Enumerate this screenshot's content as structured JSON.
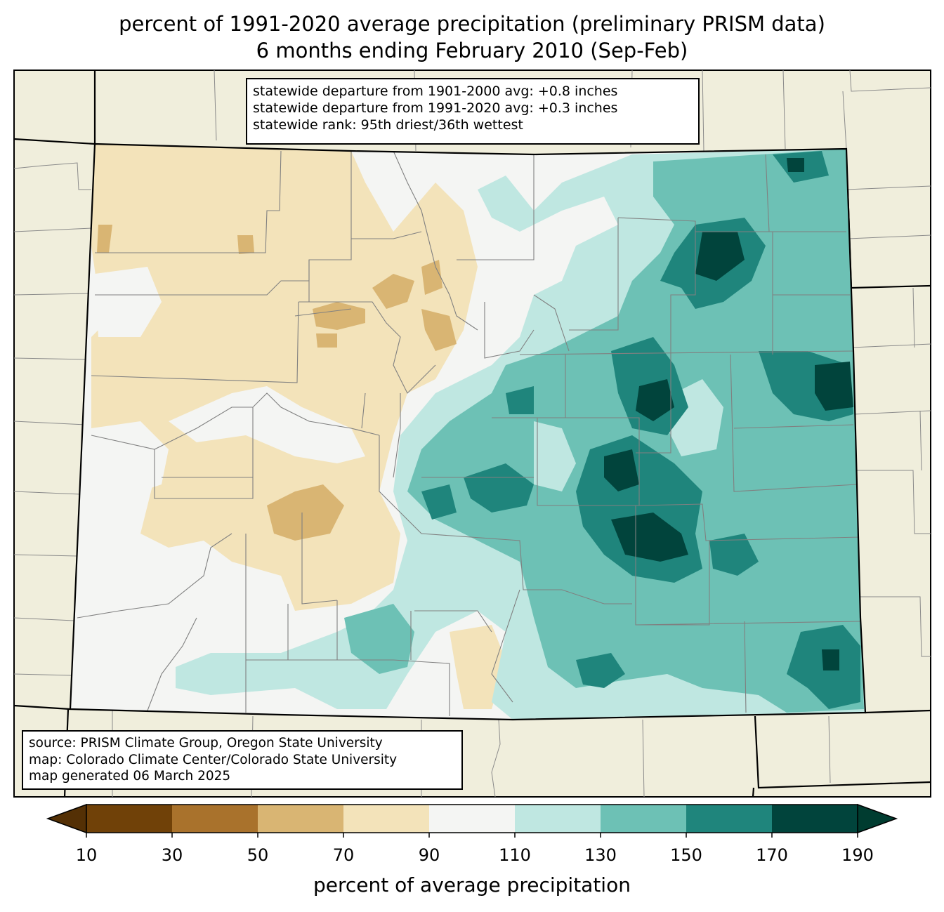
{
  "title": {
    "line1": "percent of 1991-2020 average precipitation (preliminary PRISM data)",
    "line2": "6 months ending February 2010 (Sep-Feb)"
  },
  "stats": {
    "line1": "statewide departure from 1901-2000 avg: +0.8 inches",
    "line2": "statewide departure from 1991-2020 avg: +0.3 inches",
    "line3": "statewide rank: 95th driest/36th wettest"
  },
  "source": {
    "line1": "source: PRISM Climate Group, Oregon State University",
    "line2": "map: Colorado Climate Center/Colorado State University",
    "line3": "map generated 06 March 2025"
  },
  "colorbar": {
    "label": "percent of average precipitation",
    "ticks": [
      "10",
      "30",
      "50",
      "70",
      "90",
      "110",
      "130",
      "150",
      "170",
      "190"
    ],
    "colors": [
      "#704108",
      "#a9722c",
      "#d9b573",
      "#f3e3ba",
      "#f4f5f3",
      "#bfe7e1",
      "#6dc1b5",
      "#1f857c",
      "#01443c"
    ],
    "under_color": "#543005",
    "over_color": "#003c30"
  },
  "colors": {
    "background_land": "#f0eedc",
    "state_border": "#000000",
    "county_border": "#808080"
  }
}
